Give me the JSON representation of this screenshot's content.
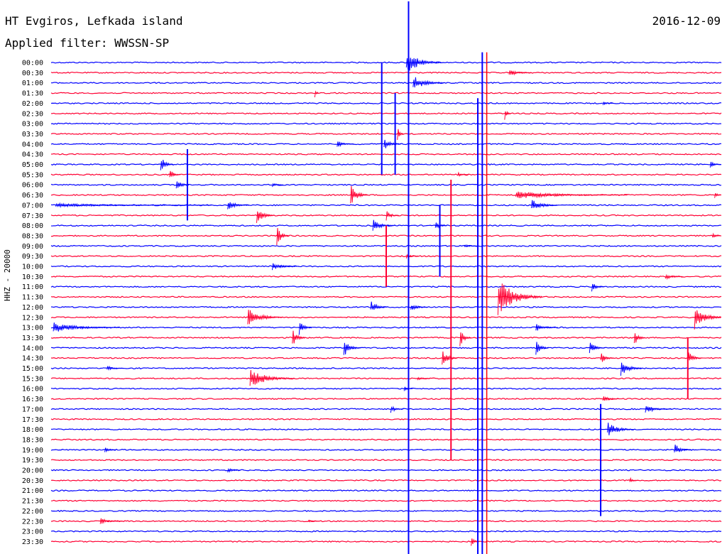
{
  "header": {
    "title": "HT Evgiros, Lefkada island",
    "date": "2016-12-09",
    "filter": "Applied filter: WWSSN-SP"
  },
  "colors": {
    "blue": "#0000ff",
    "red": "#ff0033",
    "marker": "#ff0000"
  },
  "chart_data": {
    "type": "line",
    "title": "HT Evgiros, Lefkada island",
    "ylabel": "HHZ - 20000",
    "row_labels": [
      "00:00",
      "00:30",
      "01:00",
      "01:30",
      "02:00",
      "02:30",
      "03:00",
      "03:30",
      "04:00",
      "04:30",
      "05:00",
      "05:30",
      "06:00",
      "06:30",
      "07:00",
      "07:30",
      "08:00",
      "08:30",
      "09:00",
      "09:30",
      "10:00",
      "10:30",
      "11:00",
      "11:30",
      "12:00",
      "12:30",
      "13:00",
      "13:30",
      "14:00",
      "14:30",
      "15:00",
      "15:30",
      "16:00",
      "16:30",
      "17:00",
      "17:30",
      "18:00",
      "18:30",
      "19:00",
      "19:30",
      "20:00",
      "20:30",
      "21:00",
      "21:30",
      "22:00",
      "22:30",
      "23:00",
      "23:30"
    ],
    "series_colors_alternate": [
      "blue",
      "red"
    ],
    "x_unit": "minutes into each 30-minute row",
    "xlim": [
      0,
      30
    ],
    "events": [
      {
        "row": 0,
        "x": 15.9,
        "amp": 1.8,
        "len": 1.6
      },
      {
        "row": 1,
        "x": 20.5,
        "amp": 0.6,
        "len": 1.0
      },
      {
        "row": 2,
        "x": 16.2,
        "amp": 1.2,
        "len": 1.4
      },
      {
        "row": 3,
        "x": 11.8,
        "amp": 0.8,
        "len": 0.2
      },
      {
        "row": 4,
        "x": 24.7,
        "amp": 0.3,
        "len": 0.5
      },
      {
        "row": 5,
        "x": 20.3,
        "amp": 1.0,
        "len": 0.3
      },
      {
        "row": 7,
        "x": 15.5,
        "amp": 1.4,
        "len": 0.3
      },
      {
        "row": 8,
        "x": 12.8,
        "amp": 0.6,
        "len": 0.8
      },
      {
        "row": 8,
        "x": 14.9,
        "amp": 0.9,
        "len": 0.8
      },
      {
        "row": 10,
        "x": 29.5,
        "amp": 0.6,
        "len": 0.7
      },
      {
        "row": 10,
        "x": 4.9,
        "amp": 1.4,
        "len": 0.6
      },
      {
        "row": 11,
        "x": 5.3,
        "amp": 0.9,
        "len": 0.5
      },
      {
        "row": 11,
        "x": 18.2,
        "amp": 0.4,
        "len": 0.5
      },
      {
        "row": 12,
        "x": 5.6,
        "amp": 1.2,
        "len": 0.6
      },
      {
        "row": 12,
        "x": 9.9,
        "amp": 0.4,
        "len": 0.5
      },
      {
        "row": 13,
        "x": 13.4,
        "amp": 1.8,
        "len": 0.8
      },
      {
        "row": 13,
        "x": 20.8,
        "amp": 0.6,
        "len": 5.0
      },
      {
        "row": 13,
        "x": 29.7,
        "amp": 0.6,
        "len": 0.8
      },
      {
        "row": 14,
        "x": 7.9,
        "amp": 0.8,
        "len": 1.0
      },
      {
        "row": 14,
        "x": 21.5,
        "amp": 1.0,
        "len": 1.2
      },
      {
        "row": 14,
        "x": 0.2,
        "amp": 0.3,
        "len": 7.0
      },
      {
        "row": 15,
        "x": 9.2,
        "amp": 1.4,
        "len": 0.8
      },
      {
        "row": 15,
        "x": 15.0,
        "amp": 0.8,
        "len": 0.6
      },
      {
        "row": 16,
        "x": 14.4,
        "amp": 1.0,
        "len": 1.0
      },
      {
        "row": 16,
        "x": 17.2,
        "amp": 0.8,
        "len": 0.5
      },
      {
        "row": 17,
        "x": 10.1,
        "amp": 1.5,
        "len": 0.6
      },
      {
        "row": 17,
        "x": 29.6,
        "amp": 0.4,
        "len": 0.6
      },
      {
        "row": 18,
        "x": 18.5,
        "amp": 0.3,
        "len": 0.6
      },
      {
        "row": 19,
        "x": 15.9,
        "amp": 0.5,
        "len": 0.6
      },
      {
        "row": 20,
        "x": 9.9,
        "amp": 0.6,
        "len": 1.2
      },
      {
        "row": 21,
        "x": 27.5,
        "amp": 0.5,
        "len": 0.8
      },
      {
        "row": 22,
        "x": 24.2,
        "amp": 0.8,
        "len": 0.6
      },
      {
        "row": 23,
        "x": 20.0,
        "amp": 3.0,
        "len": 2.0
      },
      {
        "row": 24,
        "x": 14.3,
        "amp": 1.0,
        "len": 0.8
      },
      {
        "row": 24,
        "x": 16.1,
        "amp": 0.6,
        "len": 0.8
      },
      {
        "row": 25,
        "x": 8.8,
        "amp": 1.4,
        "len": 1.6
      },
      {
        "row": 25,
        "x": 28.8,
        "amp": 2.0,
        "len": 1.5
      },
      {
        "row": 26,
        "x": 0.1,
        "amp": 0.8,
        "len": 3.0
      },
      {
        "row": 26,
        "x": 11.1,
        "amp": 1.2,
        "len": 0.6
      },
      {
        "row": 26,
        "x": 21.7,
        "amp": 0.6,
        "len": 1.0
      },
      {
        "row": 27,
        "x": 10.8,
        "amp": 1.4,
        "len": 0.6
      },
      {
        "row": 27,
        "x": 18.3,
        "amp": 1.6,
        "len": 0.5
      },
      {
        "row": 27,
        "x": 26.1,
        "amp": 1.5,
        "len": 0.5
      },
      {
        "row": 28,
        "x": 13.1,
        "amp": 1.4,
        "len": 0.8
      },
      {
        "row": 28,
        "x": 21.7,
        "amp": 1.2,
        "len": 0.6
      },
      {
        "row": 28,
        "x": 24.1,
        "amp": 1.0,
        "len": 0.7
      },
      {
        "row": 29,
        "x": 17.5,
        "amp": 1.4,
        "len": 0.7
      },
      {
        "row": 29,
        "x": 28.5,
        "amp": 1.2,
        "len": 0.6
      },
      {
        "row": 29,
        "x": 24.6,
        "amp": 0.9,
        "len": 0.6
      },
      {
        "row": 30,
        "x": 25.5,
        "amp": 1.2,
        "len": 1.0
      },
      {
        "row": 30,
        "x": 2.5,
        "amp": 0.4,
        "len": 0.8
      },
      {
        "row": 31,
        "x": 8.9,
        "amp": 1.5,
        "len": 2.0
      },
      {
        "row": 31,
        "x": 16.4,
        "amp": 0.4,
        "len": 0.6
      },
      {
        "row": 32,
        "x": 15.8,
        "amp": 0.4,
        "len": 0.4
      },
      {
        "row": 33,
        "x": 24.7,
        "amp": 0.5,
        "len": 0.8
      },
      {
        "row": 34,
        "x": 15.2,
        "amp": 0.6,
        "len": 0.6
      },
      {
        "row": 34,
        "x": 26.6,
        "amp": 0.7,
        "len": 1.2
      },
      {
        "row": 36,
        "x": 24.9,
        "amp": 1.2,
        "len": 1.2
      },
      {
        "row": 38,
        "x": 27.9,
        "amp": 1.0,
        "len": 0.8
      },
      {
        "row": 38,
        "x": 2.4,
        "amp": 0.6,
        "len": 0.5
      },
      {
        "row": 40,
        "x": 7.9,
        "amp": 0.4,
        "len": 0.6
      },
      {
        "row": 41,
        "x": 25.9,
        "amp": 0.5,
        "len": 0.4
      },
      {
        "row": 45,
        "x": 2.2,
        "amp": 0.5,
        "len": 1.0
      },
      {
        "row": 45,
        "x": 11.5,
        "amp": 0.2,
        "len": 0.5
      },
      {
        "row": 47,
        "x": 18.8,
        "amp": 0.8,
        "len": 0.4
      }
    ],
    "spikes": [
      {
        "x": 16.0,
        "from_row": -6.0,
        "to_row": 48.5,
        "color": "blue"
      },
      {
        "x": 19.1,
        "from_row": 3.5,
        "to_row": 48.5,
        "color": "blue"
      },
      {
        "x": 19.5,
        "from_row": -1.0,
        "to_row": 48.5,
        "color": "marker"
      },
      {
        "x": 15.4,
        "from_row": 3.0,
        "to_row": 11.0,
        "color": "blue"
      },
      {
        "x": 14.8,
        "from_row": 0.0,
        "to_row": 11.0,
        "color": "blue"
      },
      {
        "x": 17.4,
        "from_row": 14.0,
        "to_row": 21.0,
        "color": "blue"
      },
      {
        "x": 17.9,
        "from_row": 11.5,
        "to_row": 39.0,
        "color": "red"
      },
      {
        "x": 24.6,
        "from_row": 33.5,
        "to_row": 44.5,
        "color": "blue"
      },
      {
        "x": 6.1,
        "from_row": 8.5,
        "to_row": 15.5,
        "color": "blue"
      },
      {
        "x": 19.3,
        "from_row": -1.0,
        "to_row": 48.5,
        "color": "blue"
      },
      {
        "x": 28.5,
        "from_row": 27.0,
        "to_row": 33.0,
        "color": "red"
      },
      {
        "x": 15.0,
        "from_row": 16.0,
        "to_row": 22.0,
        "color": "red"
      }
    ]
  }
}
